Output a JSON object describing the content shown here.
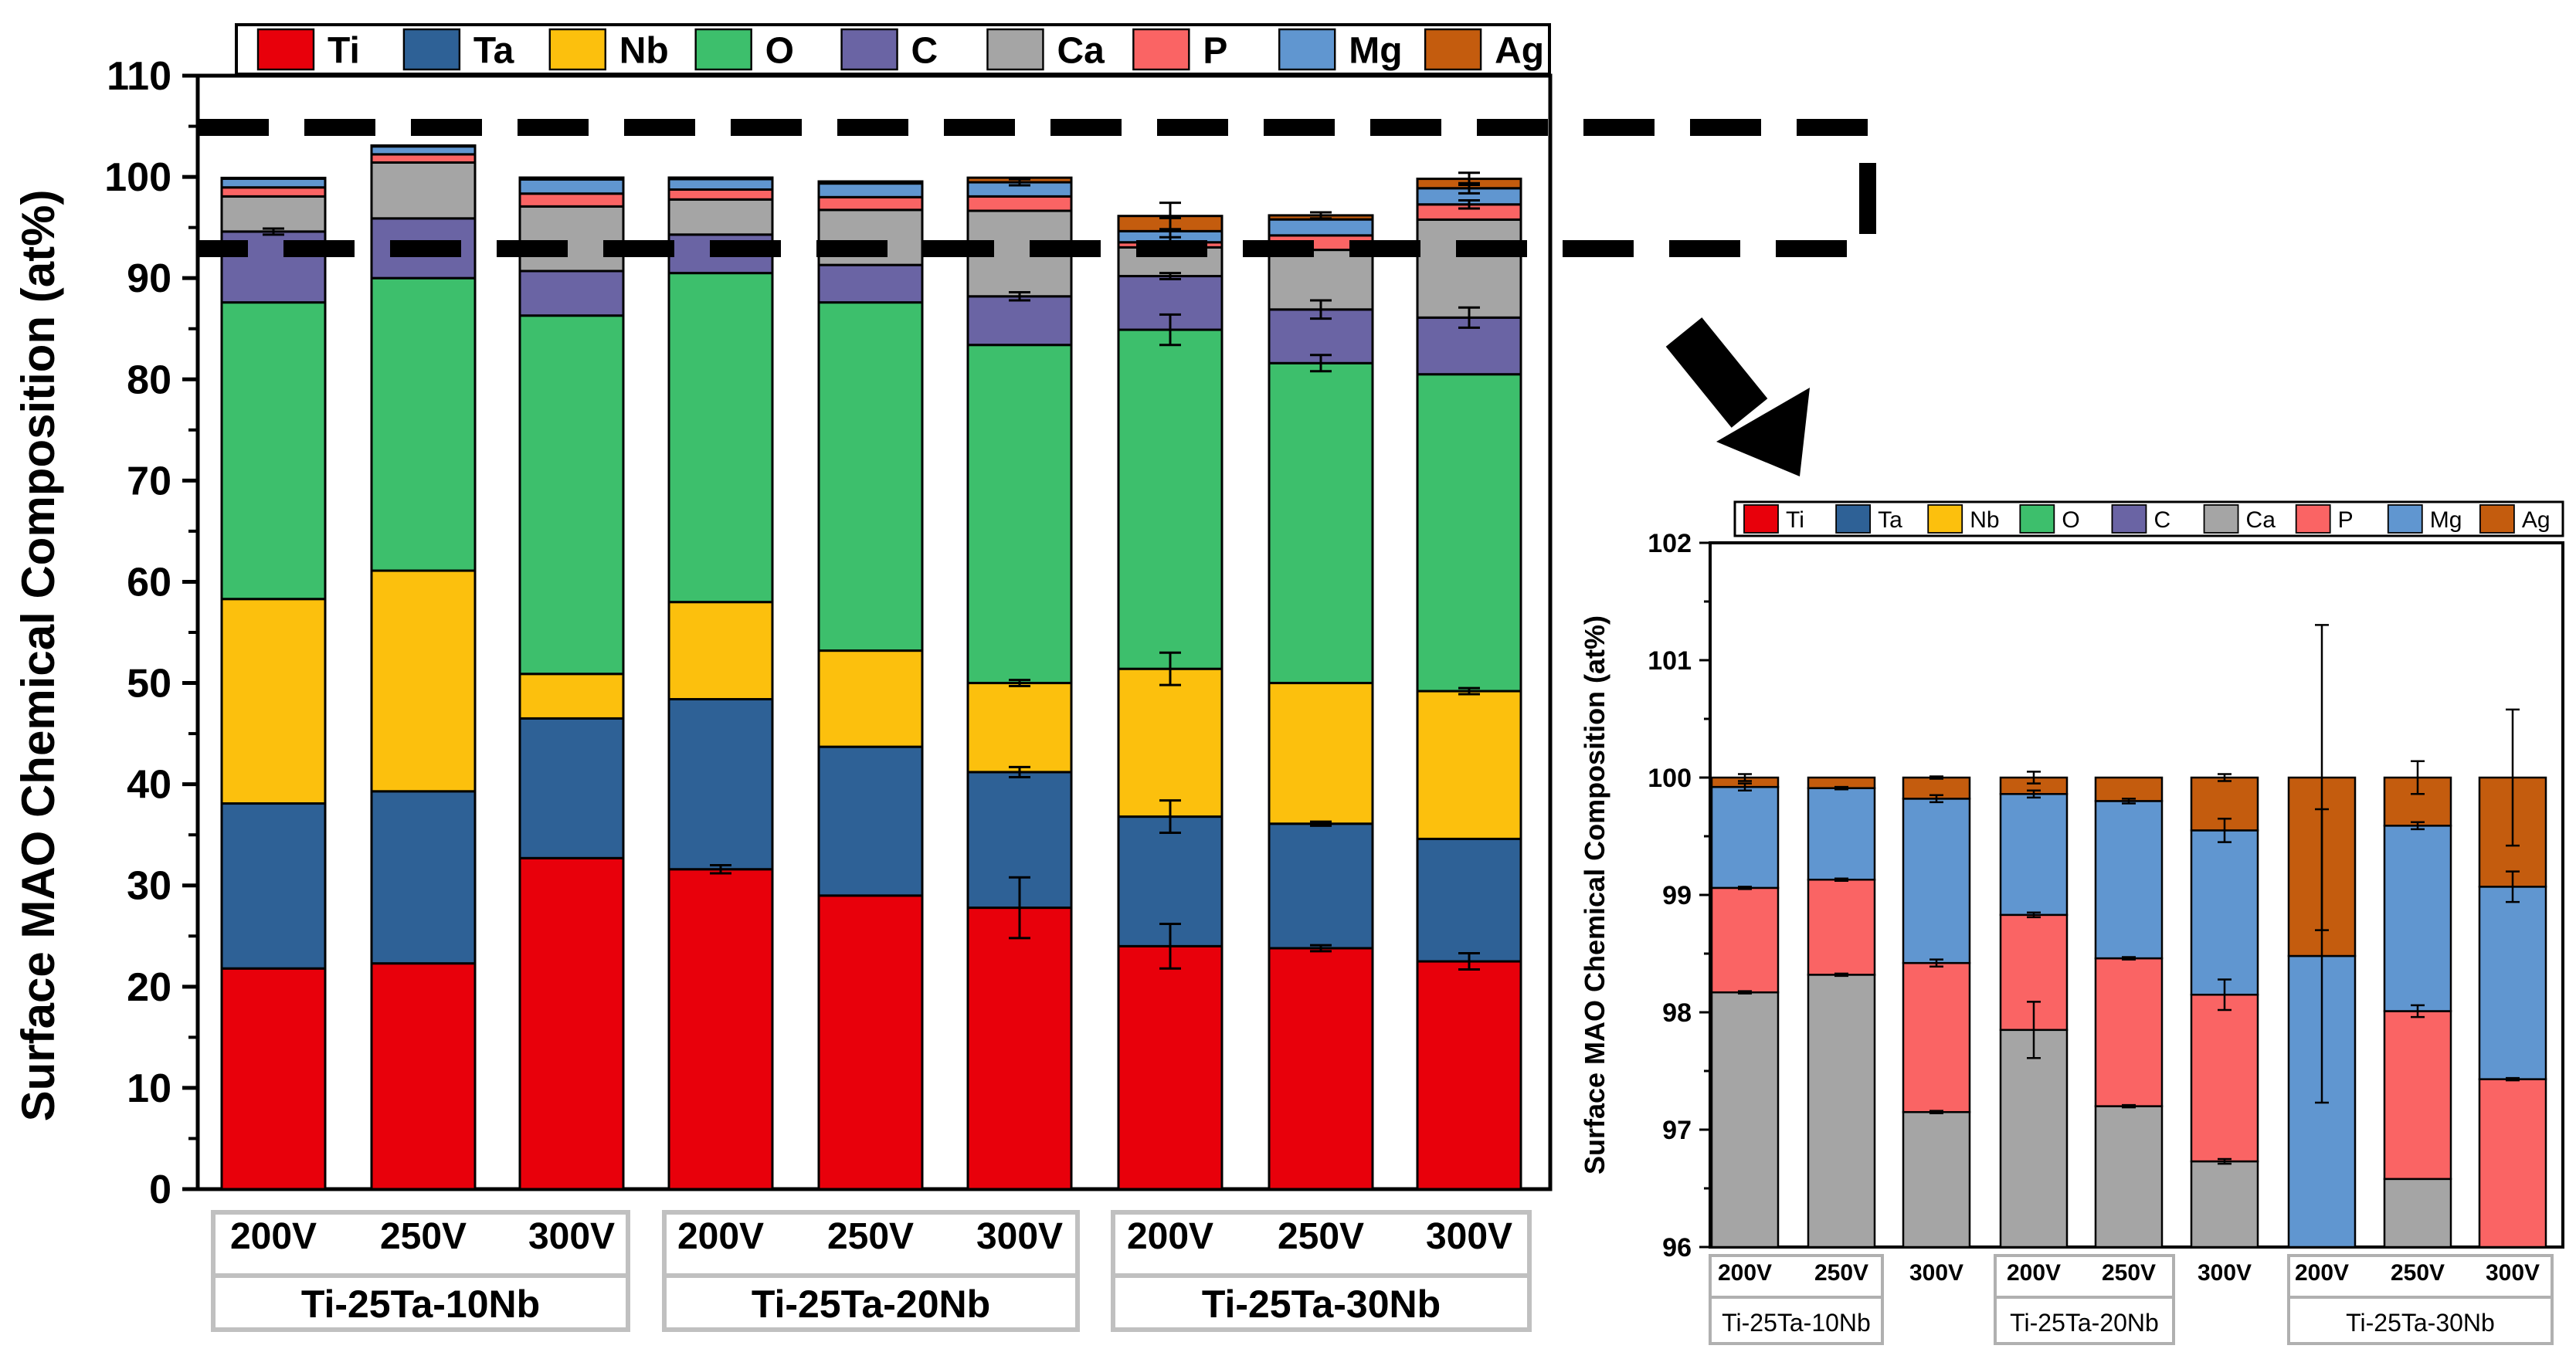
{
  "colors": {
    "Ti": "#e8000b",
    "Ta": "#2e6196",
    "Nb": "#fcc00d",
    "O": "#3dbf6c",
    "C": "#6a64a4",
    "Ca": "#a5a5a5",
    "P": "#fa6464",
    "Mg": "#6096d0",
    "Ag": "#c45c0e"
  },
  "chart_data": [
    {
      "type": "bar",
      "stacked": true,
      "ylabel": "Surface MAO Chemical Composition (at%)",
      "ylim": [
        0,
        110
      ],
      "yticks": [
        0,
        10,
        20,
        30,
        40,
        50,
        60,
        70,
        80,
        90,
        100,
        110
      ],
      "legend": [
        "Ti",
        "Ta",
        "Nb",
        "O",
        "C",
        "Ca",
        "P",
        "Mg",
        "Ag"
      ],
      "legend_position": "top",
      "categories": [
        "200V",
        "250V",
        "300V",
        "200V",
        "250V",
        "300V",
        "200V",
        "250V",
        "300V"
      ],
      "groups": [
        "Ti-25Ta-10Nb",
        "Ti-25Ta-20Nb",
        "Ti-25Ta-30Nb"
      ],
      "series": [
        {
          "name": "Ti",
          "values": [
            21.8,
            22.3,
            32.7,
            31.6,
            29.0,
            27.8,
            24.0,
            23.8,
            22.5
          ],
          "errors": [
            0,
            0,
            0,
            0.4,
            0,
            3.0,
            2.2,
            0.3,
            0.8
          ]
        },
        {
          "name": "Ta",
          "values": [
            16.3,
            17.0,
            13.8,
            16.8,
            14.7,
            13.4,
            12.8,
            12.3,
            12.1
          ],
          "errors": [
            0,
            0,
            0,
            0,
            0,
            0.5,
            1.6,
            0.2,
            0
          ]
        },
        {
          "name": "Nb",
          "values": [
            20.2,
            21.8,
            4.4,
            9.6,
            9.5,
            8.8,
            14.6,
            13.9,
            14.6
          ],
          "errors": [
            0,
            0,
            0,
            0,
            0,
            0.3,
            1.6,
            0,
            0.3
          ]
        },
        {
          "name": "O",
          "values": [
            29.3,
            28.9,
            35.4,
            32.5,
            34.4,
            33.4,
            33.5,
            31.6,
            31.3
          ],
          "errors": [
            0,
            0,
            0,
            0,
            0,
            0,
            1.5,
            0.8,
            0
          ]
        },
        {
          "name": "C",
          "values": [
            7.0,
            5.9,
            4.4,
            3.8,
            3.7,
            4.8,
            5.3,
            5.3,
            5.6
          ],
          "errors": [
            0.3,
            0,
            0,
            0,
            0,
            0.4,
            0.3,
            0.9,
            1.0
          ]
        },
        {
          "name": "Ca",
          "values": [
            3.47,
            5.52,
            6.38,
            3.47,
            5.44,
            8.45,
            2.84,
            5.89,
            9.68
          ],
          "errors": [
            0,
            0,
            0,
            0,
            0,
            0,
            0,
            0,
            0
          ]
        },
        {
          "name": "P",
          "values": [
            0.89,
            0.81,
            1.27,
            0.98,
            1.26,
            1.42,
            0.5,
            1.43,
            1.5
          ],
          "errors": [
            0,
            0,
            0,
            0,
            0,
            0,
            0.5,
            0,
            0.4
          ]
        },
        {
          "name": "Mg",
          "values": [
            0.86,
            0.78,
            1.4,
            1.03,
            1.35,
            1.4,
            1.1,
            1.58,
            1.6
          ],
          "errors": [
            0,
            0,
            0,
            0,
            0,
            0.3,
            1.3,
            0,
            0.5
          ]
        },
        {
          "name": "Ag",
          "values": [
            0.08,
            0.09,
            0.18,
            0.15,
            0.2,
            0.45,
            1.5,
            0.4,
            0.93
          ],
          "errors": [
            0,
            0,
            0,
            0,
            0,
            0,
            1.3,
            0.3,
            0.6
          ]
        }
      ]
    },
    {
      "type": "bar",
      "stacked": true,
      "ylabel": "Surface MAO Chemical Composition (at%)",
      "ylim": [
        96,
        102
      ],
      "yticks": [
        96,
        97,
        98,
        99,
        100,
        101,
        102
      ],
      "legend": [
        "Ti",
        "Ta",
        "Nb",
        "O",
        "C",
        "Ca",
        "P",
        "Mg",
        "Ag"
      ],
      "legend_position": "top",
      "categories": [
        "200V",
        "250V",
        "300V",
        "200V",
        "250V",
        "300V",
        "200V",
        "250V",
        "300V"
      ],
      "groups": [
        "Ti-25Ta-10Nb",
        "Ti-25Ta-20Nb",
        "Ti-25Ta-30Nb"
      ],
      "segment_tops": {
        "Ca": [
          98.17,
          98.32,
          97.15,
          97.85,
          97.2,
          96.73,
          96.0,
          96.58,
          96.0
        ],
        "P": [
          99.06,
          99.13,
          98.42,
          98.83,
          98.46,
          98.15,
          96.0,
          98.01,
          97.43
        ],
        "Mg": [
          99.92,
          99.91,
          99.82,
          99.86,
          99.8,
          99.55,
          98.48,
          99.59,
          99.07
        ],
        "Ag": [
          100,
          100,
          100,
          100,
          100,
          100,
          100,
          100,
          100
        ]
      },
      "errors": {
        "Ca": [
          0.01,
          0.01,
          0.01,
          0.24,
          0.01,
          0.02,
          0,
          0,
          0
        ],
        "P": [
          0.01,
          0.01,
          0.03,
          0.02,
          0.01,
          0.13,
          0,
          0.05,
          0.01
        ],
        "Mg": [
          0.03,
          0.01,
          0.03,
          0.03,
          0.02,
          0.1,
          1.25,
          0.03,
          0.13
        ],
        "Ag": [
          0.03,
          0,
          0.01,
          0.05,
          0,
          0.03,
          1.3,
          0.14,
          0.58
        ]
      }
    }
  ]
}
